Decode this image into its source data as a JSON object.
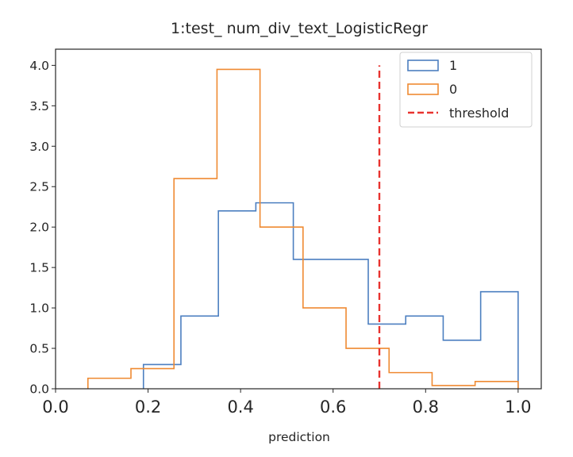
{
  "chart_data": {
    "type": "histogram",
    "title": "1:test_ num_div_text_LogisticRegr",
    "xlabel": "prediction",
    "ylabel": "",
    "xlim": [
      0.0,
      1.05
    ],
    "ylim": [
      0.0,
      4.0
    ],
    "x_ticks": [
      0.0,
      0.2,
      0.4,
      0.6,
      0.8,
      1.0
    ],
    "x_tick_labels": [
      "0.0",
      "0.2",
      "0.4",
      "0.6",
      "0.8",
      "1.0"
    ],
    "y_ticks": [
      0.0,
      0.5,
      1.0,
      1.5,
      2.0,
      2.5,
      3.0,
      3.5,
      4.0
    ],
    "y_tick_labels": [
      "0.0",
      "0.5",
      "1.0",
      "1.5",
      "2.0",
      "2.5",
      "3.0",
      "3.5",
      "4.0"
    ],
    "grid": false,
    "legend_position": "upper right",
    "series": [
      {
        "name": "1",
        "color": "#4c7fc0",
        "style": "step",
        "bin_edges": [
          0.19,
          0.271,
          0.352,
          0.433,
          0.514,
          0.595,
          0.676,
          0.757,
          0.838,
          0.919,
          1.0
        ],
        "values": [
          0.3,
          0.9,
          2.2,
          2.3,
          1.6,
          1.6,
          0.8,
          0.9,
          0.6,
          1.2
        ]
      },
      {
        "name": "0",
        "color": "#ef8a32",
        "style": "step",
        "bin_edges": [
          0.07,
          0.163,
          0.256,
          0.349,
          0.442,
          0.535,
          0.628,
          0.721,
          0.814,
          0.907,
          1.0
        ],
        "values": [
          0.13,
          0.25,
          2.6,
          3.95,
          2.0,
          1.0,
          0.5,
          0.2,
          0.04,
          0.09
        ]
      }
    ],
    "reference_lines": [
      {
        "name": "threshold",
        "x": 0.7,
        "color": "#e8332f",
        "style": "dashed"
      }
    ]
  }
}
